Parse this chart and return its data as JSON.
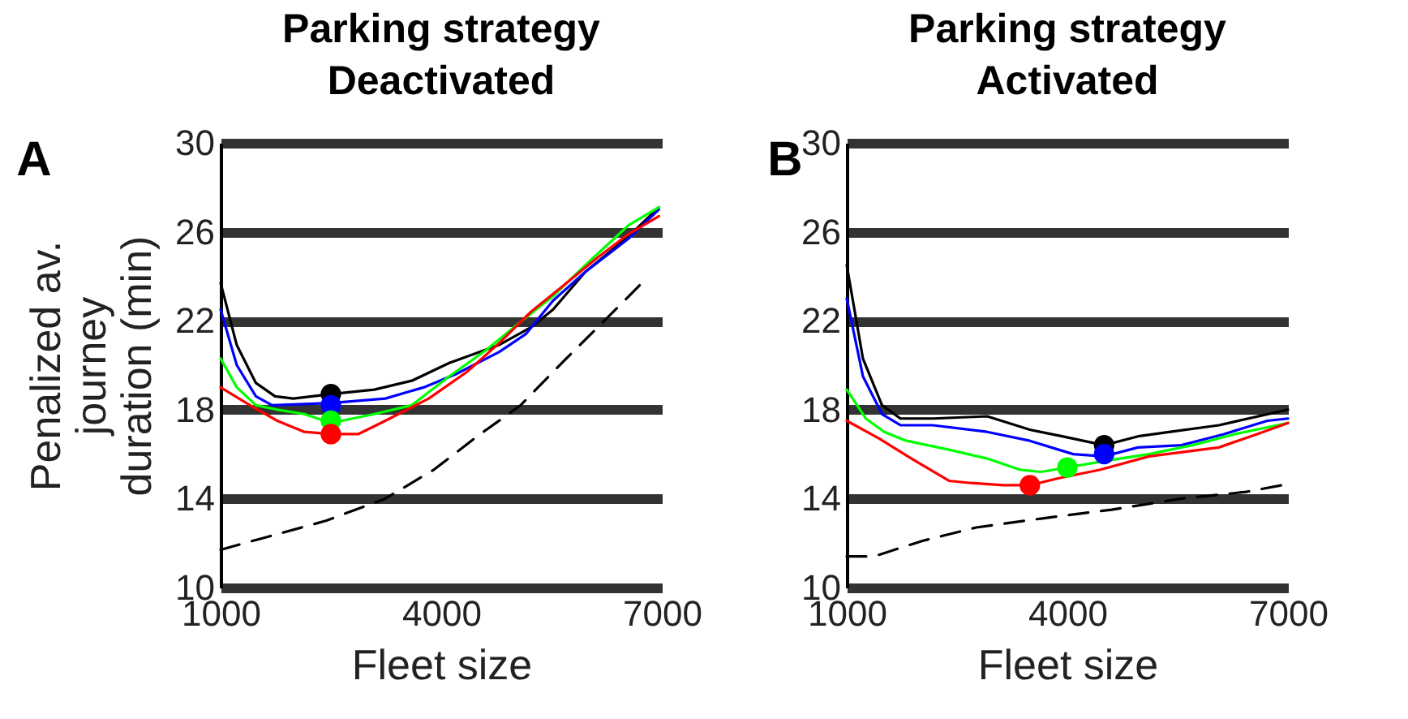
{
  "chart_data": [
    {
      "type": "line",
      "title": "Parking strategy\nDeactivated",
      "xlabel": "Fleet size",
      "ylabel": "Penalized av. journey duration (min)",
      "annotations": [
        "A"
      ],
      "xlim": [
        1000,
        7000
      ],
      "xticks": [
        1000,
        4000,
        7000
      ],
      "ylim": [
        10,
        30
      ],
      "yticks": [
        10,
        14,
        18,
        22,
        26,
        30
      ],
      "grid": "y",
      "series": [
        {
          "type": "line",
          "color": "#000000",
          "x": [
            1000,
            1220,
            1480,
            1740,
            1990,
            2500,
            3090,
            3600,
            4110,
            4780,
            5220,
            5520,
            5960,
            6550,
            6960
          ],
          "values": [
            23.7,
            20.9,
            19.2,
            18.6,
            18.5,
            18.7,
            18.9,
            19.3,
            20.1,
            20.9,
            21.7,
            22.5,
            24.2,
            25.8,
            27.1
          ]
        },
        {
          "type": "line",
          "color": "#0000ff",
          "x": [
            1000,
            1220,
            1480,
            1700,
            2500,
            3240,
            3760,
            4200,
            4790,
            5150,
            5520,
            5960,
            6550,
            6960
          ],
          "values": [
            22.5,
            20.0,
            18.6,
            18.2,
            18.3,
            18.5,
            19.0,
            19.6,
            20.6,
            21.4,
            22.9,
            24.2,
            25.7,
            27.0
          ]
        },
        {
          "type": "line",
          "color": "#00ff00",
          "x": [
            1000,
            1220,
            1480,
            1770,
            2140,
            2500,
            3090,
            3600,
            4110,
            4620,
            5060,
            5520,
            5960,
            6550,
            6960
          ],
          "values": [
            20.3,
            19.0,
            18.2,
            18.0,
            17.8,
            17.4,
            17.8,
            18.2,
            19.5,
            20.7,
            21.9,
            23.1,
            24.5,
            26.3,
            27.1
          ]
        },
        {
          "type": "line",
          "color": "#ff0000",
          "x": [
            1000,
            1400,
            1770,
            2140,
            2500,
            2870,
            3240,
            3830,
            4350,
            4790,
            5220,
            5670,
            6110,
            6550,
            6960
          ],
          "values": [
            19.0,
            18.2,
            17.5,
            17.0,
            16.9,
            16.9,
            17.5,
            18.5,
            19.7,
            21.0,
            22.4,
            23.6,
            24.8,
            25.9,
            26.7
          ]
        },
        {
          "type": "line",
          "color": "#000000",
          "line_style": "dashed",
          "x": [
            1000,
            1550,
            2430,
            3240,
            3900,
            4490,
            5080,
            5670,
            6250,
            6730
          ],
          "values": [
            11.7,
            12.2,
            13.0,
            14.0,
            15.3,
            16.8,
            18.2,
            20.2,
            22.1,
            23.7
          ]
        },
        {
          "type": "scatter",
          "color": "#000000",
          "marker": "circle",
          "x": [
            2500
          ],
          "values": [
            18.7
          ]
        },
        {
          "type": "scatter",
          "color": "#0000ff",
          "marker": "circle",
          "x": [
            2500
          ],
          "values": [
            18.2
          ]
        },
        {
          "type": "scatter",
          "color": "#00ff00",
          "marker": "circle",
          "x": [
            2500
          ],
          "values": [
            17.5
          ]
        },
        {
          "type": "scatter",
          "color": "#ff0000",
          "marker": "circle",
          "x": [
            2500
          ],
          "values": [
            16.9
          ]
        }
      ]
    },
    {
      "type": "line",
      "title": "Parking strategy\nActivated",
      "xlabel": "Fleet size",
      "annotations": [
        "B"
      ],
      "xlim": [
        1000,
        7000
      ],
      "xticks": [
        1000,
        4000,
        7000
      ],
      "ylim": [
        10,
        30
      ],
      "yticks": [
        10,
        14,
        18,
        22,
        26,
        30
      ],
      "grid": "y",
      "series": [
        {
          "type": "line",
          "color": "#000000",
          "x": [
            1000,
            1220,
            1480,
            1730,
            2170,
            2910,
            3490,
            3930,
            4500,
            4960,
            5400,
            6060,
            7000
          ],
          "values": [
            24.5,
            20.3,
            18.2,
            17.6,
            17.6,
            17.7,
            17.1,
            16.8,
            16.4,
            16.8,
            17.0,
            17.3,
            18.0
          ]
        },
        {
          "type": "line",
          "color": "#0000ff",
          "x": [
            1000,
            1220,
            1480,
            1730,
            2170,
            2910,
            3490,
            4080,
            4500,
            4960,
            5550,
            6130,
            6720,
            7000
          ],
          "values": [
            23.0,
            19.5,
            17.8,
            17.3,
            17.3,
            17.0,
            16.6,
            16.0,
            15.9,
            16.3,
            16.4,
            16.9,
            17.5,
            17.6
          ]
        },
        {
          "type": "line",
          "color": "#00ff00",
          "x": [
            1000,
            1260,
            1510,
            1810,
            2390,
            2910,
            3350,
            3640,
            4000,
            4520,
            5110,
            5700,
            6280,
            7000
          ],
          "values": [
            18.9,
            17.6,
            17.0,
            16.6,
            16.2,
            15.8,
            15.3,
            15.2,
            15.4,
            15.7,
            16.0,
            16.4,
            16.9,
            17.4
          ]
        },
        {
          "type": "line",
          "color": "#ff0000",
          "x": [
            1000,
            1440,
            1880,
            2390,
            2690,
            3130,
            3490,
            3860,
            4450,
            5110,
            6060,
            6580,
            7000
          ],
          "values": [
            17.5,
            16.7,
            15.8,
            14.8,
            14.7,
            14.6,
            14.6,
            14.9,
            15.3,
            15.9,
            16.3,
            16.9,
            17.4
          ]
        },
        {
          "type": "line",
          "color": "#000000",
          "line_style": "dashed",
          "x": [
            1000,
            1370,
            2030,
            2760,
            3640,
            4600,
            5550,
            6430,
            6910
          ],
          "values": [
            11.4,
            11.4,
            12.1,
            12.7,
            13.1,
            13.5,
            14.0,
            14.3,
            14.6
          ]
        },
        {
          "type": "scatter",
          "color": "#000000",
          "marker": "circle",
          "x": [
            4500
          ],
          "values": [
            16.4
          ]
        },
        {
          "type": "scatter",
          "color": "#0000ff",
          "marker": "circle",
          "x": [
            4500
          ],
          "values": [
            16.0
          ]
        },
        {
          "type": "scatter",
          "color": "#00ff00",
          "marker": "circle",
          "x": [
            4000
          ],
          "values": [
            15.4
          ]
        },
        {
          "type": "scatter",
          "color": "#ff0000",
          "marker": "circle",
          "x": [
            3490
          ],
          "values": [
            14.6
          ]
        }
      ]
    }
  ]
}
